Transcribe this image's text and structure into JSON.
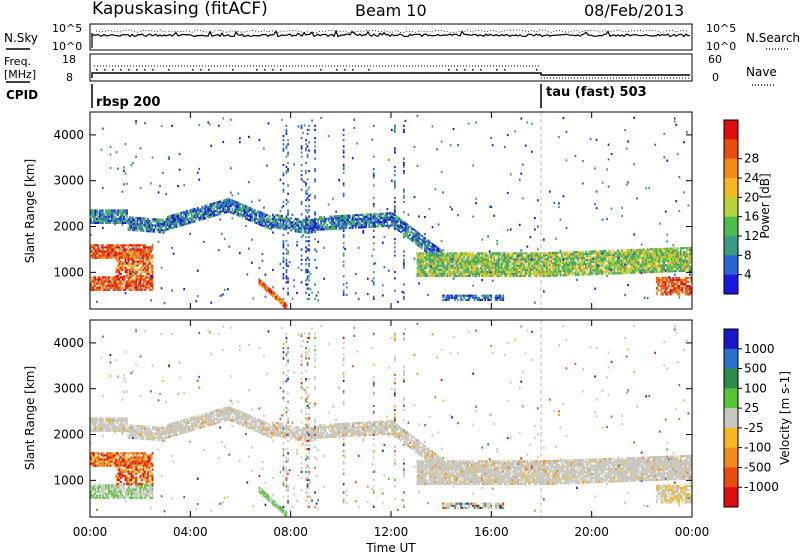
{
  "header": {
    "station": "Kapuskasing (fitACF)",
    "beam": "Beam 10",
    "date": "08/Feb/2013"
  },
  "panels": {
    "noise": {
      "left_label": "N.Sky",
      "right_label": "N.Search",
      "left_ticks": [
        "10^5",
        "10^0"
      ],
      "right_ticks": [
        "10^5",
        "10^0"
      ]
    },
    "freq": {
      "left_label_1": "Freq.",
      "left_label_2": "[MHz]",
      "right_label": "Nave",
      "left_ticks": [
        "18",
        "8"
      ],
      "right_ticks": [
        "60",
        "0"
      ]
    },
    "cpid": {
      "label": "CPID",
      "programs": [
        {
          "name": "rbsp 200",
          "start_hour": 0
        },
        {
          "name": "tau (fast) 503",
          "start_hour": 18
        }
      ]
    }
  },
  "chart_data": [
    {
      "type": "heatmap",
      "title": "",
      "ylabel": "Slant Range [km]",
      "xlabel": "",
      "xlim": [
        0,
        24
      ],
      "ylim": [
        200,
        4500
      ],
      "yticks": [
        "1000",
        "2000",
        "3000",
        "4000"
      ],
      "colorbar": {
        "label": "Power [dB]",
        "ticks": [
          "4",
          "8",
          "12",
          "16",
          "20",
          "24",
          "28"
        ],
        "colors": [
          "#1818e0",
          "#2a64d4",
          "#3a9a82",
          "#4dbb4d",
          "#b9d43b",
          "#f5b821",
          "#f28a14",
          "#ec4b10",
          "#e00c0c"
        ]
      }
    },
    {
      "type": "heatmap",
      "title": "",
      "ylabel": "Slant Range [km]",
      "xlabel": "Time UT",
      "xlim": [
        0,
        24
      ],
      "ylim": [
        200,
        4500
      ],
      "yticks": [
        "1000",
        "2000",
        "3000",
        "4000"
      ],
      "xticks": [
        "00:00",
        "04:00",
        "08:00",
        "12:00",
        "16:00",
        "20:00",
        "00:00"
      ],
      "colorbar": {
        "label": "Velocity [m s-1]",
        "ticks": [
          "1000",
          "500",
          "100",
          "25",
          "-25",
          "-100",
          "-500",
          "-1000"
        ],
        "colors": [
          "#1818c8",
          "#2a6fd0",
          "#2e8c48",
          "#55c437",
          "#c8c8c0",
          "#f5b821",
          "#f08a1c",
          "#ec4b10",
          "#e00c0c"
        ]
      }
    }
  ]
}
